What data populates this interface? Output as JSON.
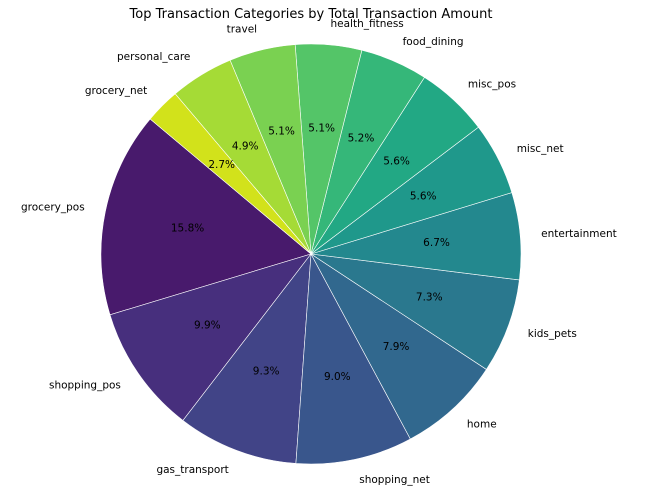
{
  "chart_data": {
    "type": "pie",
    "title": "Top Transaction Categories by Total Transaction Amount",
    "categories": [
      "grocery_pos",
      "shopping_pos",
      "gas_transport",
      "shopping_net",
      "home",
      "kids_pets",
      "entertainment",
      "misc_net",
      "misc_pos",
      "food_dining",
      "health_fitness",
      "travel",
      "personal_care",
      "grocery_net"
    ],
    "values": [
      15.8,
      9.9,
      9.3,
      9.0,
      7.9,
      7.3,
      6.7,
      5.6,
      5.6,
      5.2,
      5.1,
      5.1,
      4.9,
      2.7
    ],
    "percent_labels": [
      "15.8%",
      "9.9%",
      "9.3%",
      "9.0%",
      "7.9%",
      "7.3%",
      "6.7%",
      "5.6%",
      "5.6%",
      "5.2%",
      "5.1%",
      "5.1%",
      "4.9%",
      "2.7%"
    ],
    "colors": [
      "#481a6c",
      "#472f7d",
      "#414487",
      "#39568c",
      "#31688e",
      "#2a788e",
      "#23888e",
      "#1f988b",
      "#22a884",
      "#35b779",
      "#54c568",
      "#7ad151",
      "#a5db36",
      "#d2e21b"
    ],
    "start_angle_deg": 140,
    "direction": "counterclockwise",
    "legend": "none"
  }
}
